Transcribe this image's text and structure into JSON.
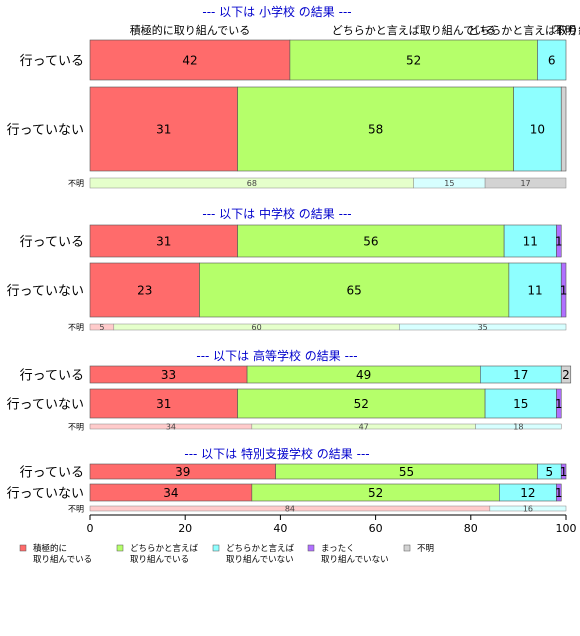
{
  "chart_data": {
    "type": "bar",
    "orientation": "horizontal",
    "stacked": true,
    "xlim": [
      0,
      100
    ],
    "xticks": [
      0,
      20,
      40,
      60,
      80,
      100
    ],
    "series_names": [
      "積極的に取り組んでいる",
      "どちらかと言えば取り組んでいる",
      "どちらかと言えば取り組んでいない",
      "まったく取り組んでいない",
      "不明"
    ],
    "colors": [
      "#ff6b6b",
      "#b5ff6a",
      "#8effff",
      "#b070ff",
      "#d3d3d3"
    ],
    "legend": {
      "placement": "bottom",
      "items": [
        "積極的に\n取り組んでいる",
        "どちらかと言えば\n取り組んでいる",
        "どちらかと言えば\n取り組んでいない",
        "まったく\n取り組んでいない",
        "不明"
      ]
    },
    "top_labels": [
      "積極的に取り組んでいる",
      "どちらかと言えば取り組んでいる",
      "どちらかと言えば取り組んでいない",
      "不明"
    ],
    "panels": [
      {
        "title": "--- 以下は 小学校 の結果 ---",
        "rows": [
          {
            "label": "行っている",
            "values": [
              42,
              52,
              6,
              0,
              0
            ],
            "labels": [
              "42",
              "52",
              "6",
              "",
              ""
            ]
          },
          {
            "label": "行っていない",
            "values": [
              31,
              58,
              10,
              0,
              1
            ],
            "labels": [
              "31",
              "58",
              "10",
              "",
              ""
            ]
          }
        ],
        "unknown": {
          "label": "不明",
          "values": [
            0,
            68,
            15,
            0,
            17
          ],
          "labels": [
            "",
            "68",
            "15",
            "",
            "17"
          ]
        }
      },
      {
        "title": "--- 以下は 中学校 の結果 ---",
        "rows": [
          {
            "label": "行っている",
            "values": [
              31,
              56,
              11,
              1,
              0
            ],
            "labels": [
              "31",
              "56",
              "11",
              "1",
              ""
            ]
          },
          {
            "label": "行っていない",
            "values": [
              23,
              65,
              11,
              1,
              0
            ],
            "labels": [
              "23",
              "65",
              "11",
              "1",
              ""
            ]
          }
        ],
        "unknown": {
          "label": "不明",
          "values": [
            5,
            60,
            35,
            0,
            0
          ],
          "labels": [
            "5",
            "60",
            "35",
            "",
            ""
          ]
        }
      },
      {
        "title": "--- 以下は 高等学校 の結果 ---",
        "rows": [
          {
            "label": "行っている",
            "values": [
              33,
              49,
              17,
              0,
              2
            ],
            "labels": [
              "33",
              "49",
              "17",
              "",
              "2"
            ]
          },
          {
            "label": "行っていない",
            "values": [
              31,
              52,
              15,
              1,
              0
            ],
            "labels": [
              "31",
              "52",
              "15",
              "1",
              ""
            ]
          }
        ],
        "unknown": {
          "label": "不明",
          "values": [
            34,
            47,
            18,
            0,
            0
          ],
          "labels": [
            "34",
            "47",
            "18",
            "",
            ""
          ]
        }
      },
      {
        "title": "--- 以下は 特別支援学校 の結果 ---",
        "rows": [
          {
            "label": "行っている",
            "values": [
              39,
              55,
              5,
              1,
              0
            ],
            "labels": [
              "39",
              "55",
              "5",
              "1",
              ""
            ]
          },
          {
            "label": "行っていない",
            "values": [
              34,
              52,
              12,
              1,
              0
            ],
            "labels": [
              "34",
              "52",
              "12",
              "1",
              ""
            ]
          }
        ],
        "unknown": {
          "label": "不明",
          "values": [
            84,
            0,
            16,
            0,
            0
          ],
          "labels": [
            "84",
            "",
            "16",
            "",
            ""
          ]
        }
      }
    ]
  }
}
